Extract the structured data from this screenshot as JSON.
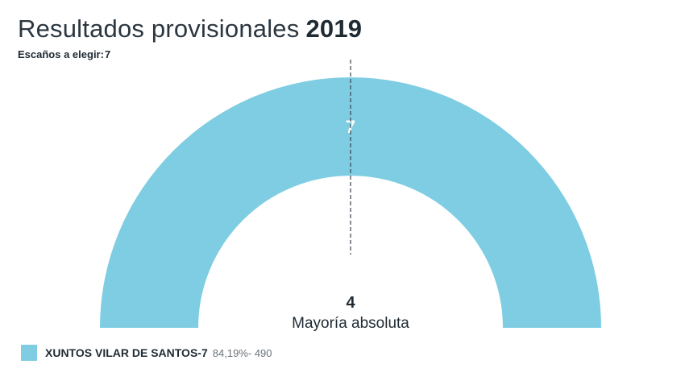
{
  "chart_data": {
    "type": "hemicycle",
    "title": "Resultados provisionales",
    "year": "2019",
    "seats_label": "Escaños a elegir:",
    "total_seats": 7,
    "majority_value": 4,
    "majority_label": "Mayoría absoluta",
    "parties": [
      {
        "name": "XUNTOS VILAR DE SANTOS",
        "seats": 7,
        "percent": "84,19%",
        "votes": "490",
        "color": "#7ecde2"
      }
    ]
  }
}
